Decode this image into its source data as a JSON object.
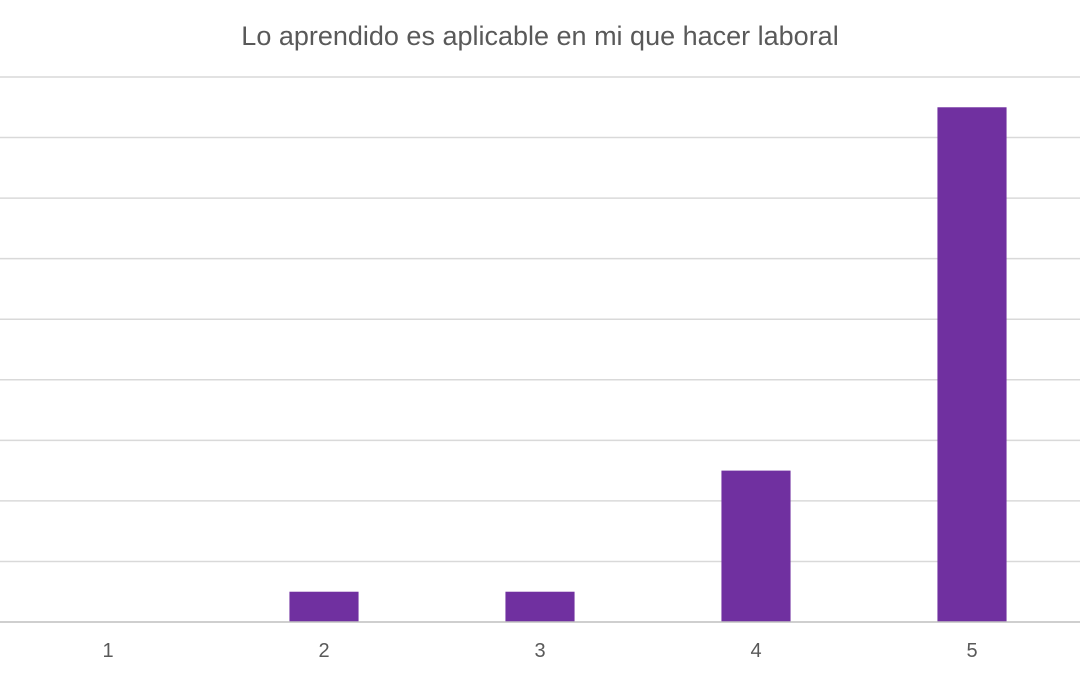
{
  "chart_data": {
    "type": "bar",
    "title": "Lo aprendido es aplicable en mi que hacer laboral",
    "categories": [
      "1",
      "2",
      "3",
      "4",
      "5"
    ],
    "values": [
      0,
      1,
      1,
      5,
      17
    ],
    "ylim": [
      0,
      18
    ],
    "grid": true,
    "y_tick_labels_visible": false,
    "legend": "none",
    "colors": {
      "bar": "#7030A0",
      "grid": "#D9D9D9",
      "text": "#595959"
    }
  }
}
